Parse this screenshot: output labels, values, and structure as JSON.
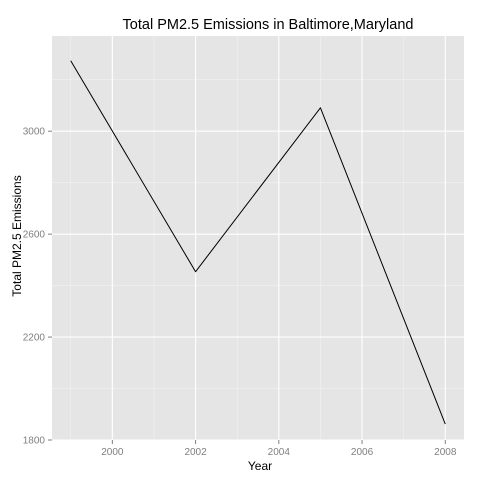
{
  "chart_data": {
    "type": "line",
    "title": "Total PM2.5 Emissions in Baltimore,Maryland",
    "xlabel": "Year",
    "ylabel": "Total PM2.5 Emissions",
    "x": [
      1999,
      2002,
      2005,
      2008
    ],
    "series": [
      {
        "values": [
          3274,
          2454,
          3091,
          1862
        ]
      }
    ],
    "xlim": [
      1998.55,
      2008.45
    ],
    "ylim": [
      1800,
      3370
    ],
    "x_ticks": [
      2000,
      2002,
      2004,
      2006,
      2008
    ],
    "y_ticks": [
      1800,
      2200,
      2600,
      3000
    ],
    "grid": true,
    "legend": "none",
    "colors": {
      "panel_background": "#e5e5e5",
      "grid_major": "#ffffff",
      "grid_minor": "#f2f2f2",
      "line": "#000000",
      "tick_text": "#7f7f7f",
      "tick_mark": "#7f7f7f"
    }
  }
}
